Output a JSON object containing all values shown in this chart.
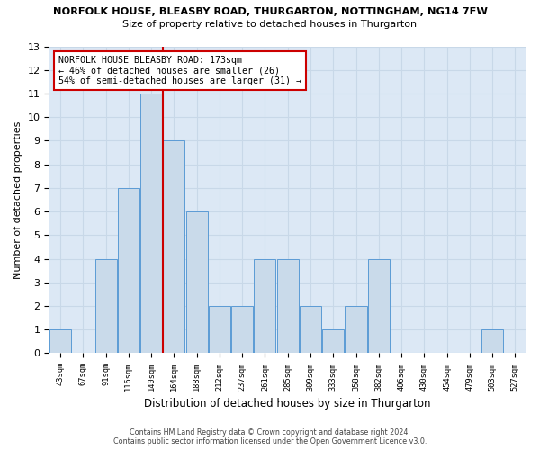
{
  "title_line1": "NORFOLK HOUSE, BLEASBY ROAD, THURGARTON, NOTTINGHAM, NG14 7FW",
  "title_line2": "Size of property relative to detached houses in Thurgarton",
  "xlabel": "Distribution of detached houses by size in Thurgarton",
  "ylabel": "Number of detached properties",
  "bar_heights": [
    1,
    0,
    4,
    7,
    11,
    9,
    6,
    2,
    2,
    4,
    4,
    2,
    1,
    2,
    4,
    0,
    0,
    0,
    0,
    1,
    0
  ],
  "bar_color": "#c9daea",
  "bar_edge_color": "#5b9bd5",
  "reference_bin": 5,
  "reference_line_color": "#cc0000",
  "annotation_text": "NORFOLK HOUSE BLEASBY ROAD: 173sqm\n← 46% of detached houses are smaller (26)\n54% of semi-detached houses are larger (31) →",
  "annotation_box_color": "#ffffff",
  "annotation_box_edgecolor": "#cc0000",
  "ylim": [
    0,
    13
  ],
  "yticks": [
    0,
    1,
    2,
    3,
    4,
    5,
    6,
    7,
    8,
    9,
    10,
    11,
    12,
    13
  ],
  "footer_line1": "Contains HM Land Registry data © Crown copyright and database right 2024.",
  "footer_line2": "Contains public sector information licensed under the Open Government Licence v3.0.",
  "tick_labels": [
    "43sqm",
    "67sqm",
    "91sqm",
    "116sqm",
    "140sqm",
    "164sqm",
    "188sqm",
    "212sqm",
    "237sqm",
    "261sqm",
    "285sqm",
    "309sqm",
    "333sqm",
    "358sqm",
    "382sqm",
    "406sqm",
    "430sqm",
    "454sqm",
    "479sqm",
    "503sqm",
    "527sqm"
  ],
  "grid_color": "#c8d8e8",
  "background_color": "#dce8f5"
}
